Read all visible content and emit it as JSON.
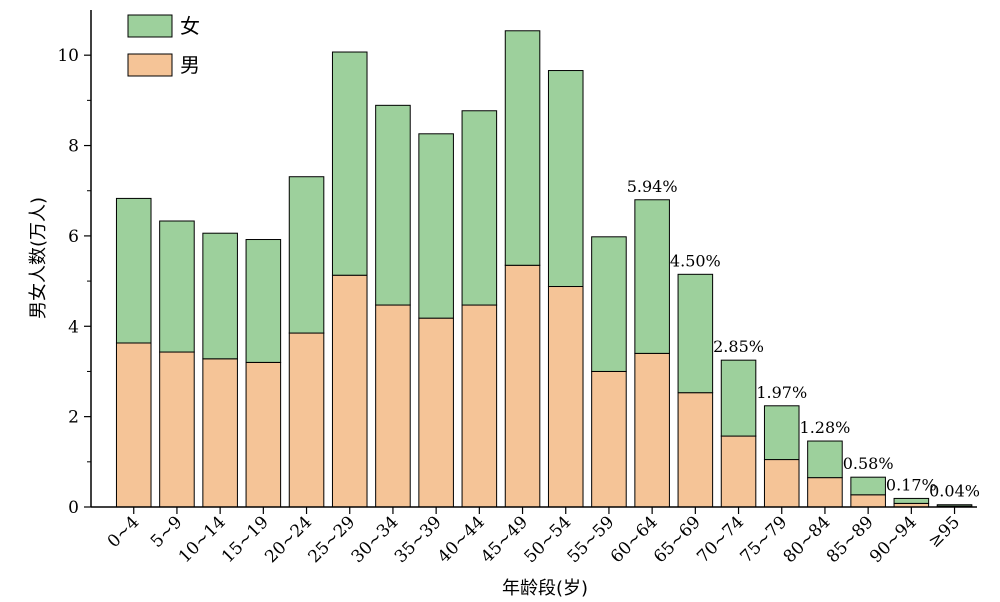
{
  "chart_data": {
    "type": "bar",
    "stacked": true,
    "xlabel": "年龄段(岁)",
    "ylabel": "男女人数(万人)",
    "ylim": [
      0,
      11
    ],
    "yticks": [
      0,
      2,
      4,
      6,
      8,
      10
    ],
    "categories": [
      "0~4",
      "5~9",
      "10~14",
      "15~19",
      "20~24",
      "25~29",
      "30~34",
      "35~39",
      "40~44",
      "45~49",
      "50~54",
      "55~59",
      "60~64",
      "65~69",
      "70~74",
      "75~79",
      "80~84",
      "85~89",
      "90~94",
      "≥95"
    ],
    "series": [
      {
        "name": "男",
        "color": "#f5c497",
        "values": [
          3.63,
          3.43,
          3.28,
          3.2,
          3.85,
          5.13,
          4.47,
          4.18,
          4.47,
          5.35,
          4.88,
          3.0,
          3.4,
          2.53,
          1.57,
          1.05,
          0.65,
          0.27,
          0.08,
          0.02
        ]
      },
      {
        "name": "女",
        "color": "#9dd09c",
        "values": [
          3.2,
          2.9,
          2.78,
          2.72,
          3.46,
          4.94,
          4.42,
          4.08,
          4.3,
          5.19,
          4.78,
          2.98,
          3.4,
          2.62,
          1.68,
          1.19,
          0.81,
          0.39,
          0.11,
          0.03
        ]
      }
    ],
    "annotations": [
      {
        "category": "60~64",
        "text": "5.94%"
      },
      {
        "category": "65~69",
        "text": "4.50%"
      },
      {
        "category": "70~74",
        "text": "2.85%"
      },
      {
        "category": "75~79",
        "text": "1.97%"
      },
      {
        "category": "80~84",
        "text": "1.28%"
      },
      {
        "category": "85~89",
        "text": "0.58%"
      },
      {
        "category": "90~94",
        "text": "0.17%"
      },
      {
        "category": "≥95",
        "text": "0.04%"
      }
    ],
    "legend": {
      "position": "top-left",
      "entries": [
        {
          "series": "女",
          "label": "女",
          "color": "#9dd09c"
        },
        {
          "series": "男",
          "label": "男",
          "color": "#f5c497"
        }
      ]
    },
    "grid": false
  }
}
